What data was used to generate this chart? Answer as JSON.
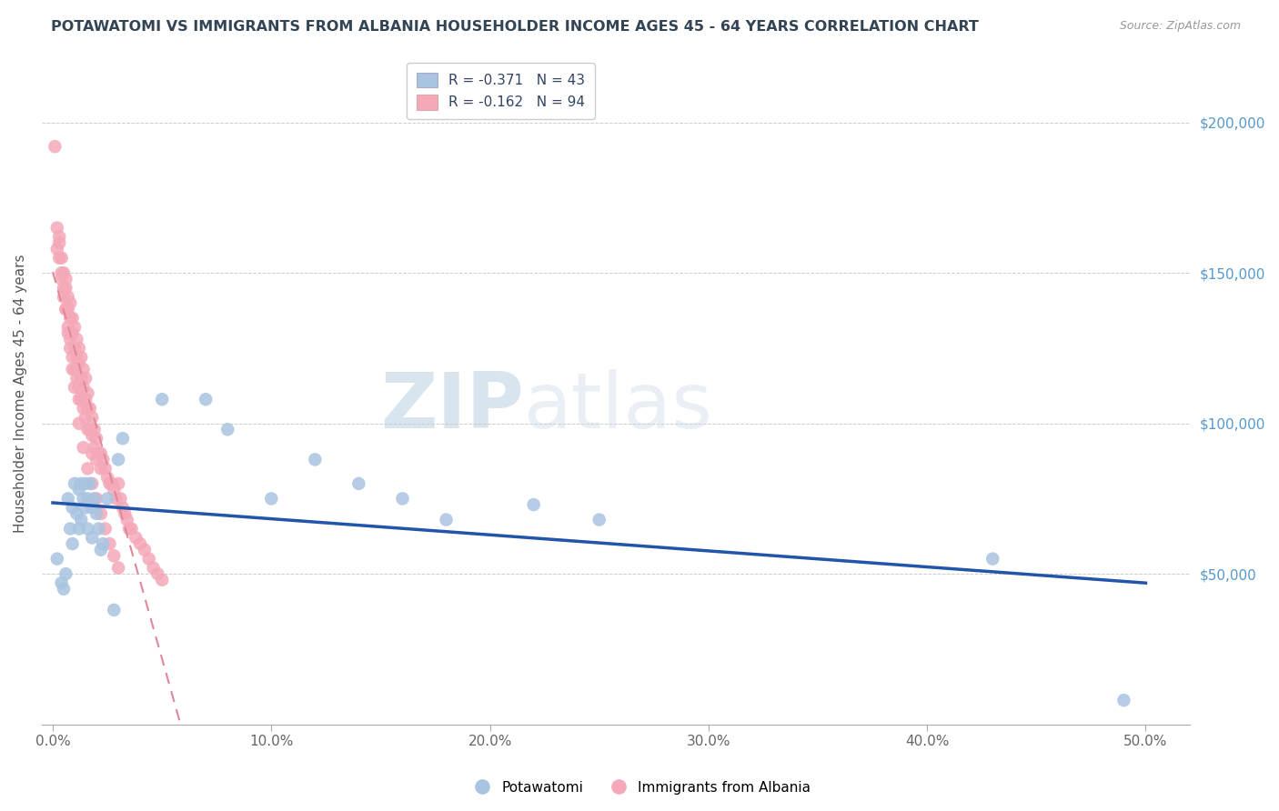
{
  "title": "POTAWATOMI VS IMMIGRANTS FROM ALBANIA HOUSEHOLDER INCOME AGES 45 - 64 YEARS CORRELATION CHART",
  "source": "Source: ZipAtlas.com",
  "ylabel": "Householder Income Ages 45 - 64 years",
  "xlabel_ticks": [
    "0.0%",
    "10.0%",
    "20.0%",
    "30.0%",
    "40.0%",
    "50.0%"
  ],
  "xlabel_vals": [
    0.0,
    0.1,
    0.2,
    0.3,
    0.4,
    0.5
  ],
  "ytick_labels": [
    "$200,000",
    "$150,000",
    "$100,000",
    "$50,000"
  ],
  "ytick_vals": [
    200000,
    150000,
    100000,
    50000
  ],
  "right_ytick_labels": [
    "$200,000",
    "$150,000",
    "$100,000",
    "$50,000"
  ],
  "xlim": [
    -0.005,
    0.52
  ],
  "ylim": [
    0,
    220000
  ],
  "blue_color": "#a8c4e0",
  "pink_color": "#f4a8b8",
  "blue_line_color": "#2255aa",
  "pink_line_color": "#e08898",
  "watermark_part1": "ZIP",
  "watermark_part2": "atlas",
  "legend_blue_label": "R = -0.371   N = 43",
  "legend_pink_label": "R = -0.162   N = 94",
  "blue_scatter_x": [
    0.002,
    0.004,
    0.005,
    0.006,
    0.007,
    0.008,
    0.009,
    0.009,
    0.01,
    0.011,
    0.012,
    0.012,
    0.013,
    0.013,
    0.014,
    0.015,
    0.015,
    0.016,
    0.016,
    0.017,
    0.018,
    0.018,
    0.019,
    0.02,
    0.021,
    0.022,
    0.023,
    0.025,
    0.028,
    0.03,
    0.032,
    0.05,
    0.07,
    0.08,
    0.1,
    0.12,
    0.14,
    0.16,
    0.18,
    0.22,
    0.25,
    0.43,
    0.49
  ],
  "blue_scatter_y": [
    55000,
    47000,
    45000,
    50000,
    75000,
    65000,
    72000,
    60000,
    80000,
    70000,
    78000,
    65000,
    80000,
    68000,
    75000,
    80000,
    72000,
    75000,
    65000,
    80000,
    72000,
    62000,
    75000,
    70000,
    65000,
    58000,
    60000,
    75000,
    38000,
    88000,
    95000,
    108000,
    108000,
    98000,
    75000,
    88000,
    80000,
    75000,
    68000,
    73000,
    68000,
    55000,
    8000
  ],
  "pink_scatter_x": [
    0.001,
    0.002,
    0.002,
    0.003,
    0.003,
    0.004,
    0.004,
    0.005,
    0.005,
    0.006,
    0.006,
    0.006,
    0.007,
    0.007,
    0.007,
    0.008,
    0.008,
    0.008,
    0.009,
    0.009,
    0.009,
    0.01,
    0.01,
    0.01,
    0.011,
    0.011,
    0.011,
    0.012,
    0.012,
    0.012,
    0.012,
    0.013,
    0.013,
    0.013,
    0.014,
    0.014,
    0.014,
    0.015,
    0.015,
    0.015,
    0.016,
    0.016,
    0.016,
    0.017,
    0.017,
    0.018,
    0.018,
    0.018,
    0.019,
    0.019,
    0.02,
    0.02,
    0.021,
    0.022,
    0.022,
    0.023,
    0.024,
    0.025,
    0.026,
    0.027,
    0.028,
    0.029,
    0.03,
    0.031,
    0.032,
    0.033,
    0.034,
    0.035,
    0.036,
    0.038,
    0.04,
    0.042,
    0.044,
    0.046,
    0.048,
    0.05,
    0.003,
    0.004,
    0.005,
    0.006,
    0.007,
    0.008,
    0.009,
    0.01,
    0.012,
    0.014,
    0.016,
    0.018,
    0.02,
    0.022,
    0.024,
    0.026,
    0.028,
    0.03
  ],
  "pink_scatter_y": [
    192000,
    165000,
    158000,
    162000,
    155000,
    155000,
    148000,
    150000,
    142000,
    148000,
    145000,
    138000,
    142000,
    138000,
    132000,
    140000,
    135000,
    128000,
    135000,
    130000,
    122000,
    132000,
    125000,
    118000,
    128000,
    122000,
    115000,
    125000,
    120000,
    112000,
    108000,
    122000,
    115000,
    108000,
    118000,
    112000,
    105000,
    115000,
    108000,
    102000,
    110000,
    105000,
    98000,
    105000,
    98000,
    102000,
    96000,
    90000,
    98000,
    92000,
    95000,
    88000,
    90000,
    90000,
    85000,
    88000,
    85000,
    82000,
    80000,
    80000,
    78000,
    75000,
    80000,
    75000,
    72000,
    70000,
    68000,
    65000,
    65000,
    62000,
    60000,
    58000,
    55000,
    52000,
    50000,
    48000,
    160000,
    150000,
    145000,
    138000,
    130000,
    125000,
    118000,
    112000,
    100000,
    92000,
    85000,
    80000,
    75000,
    70000,
    65000,
    60000,
    56000,
    52000
  ]
}
